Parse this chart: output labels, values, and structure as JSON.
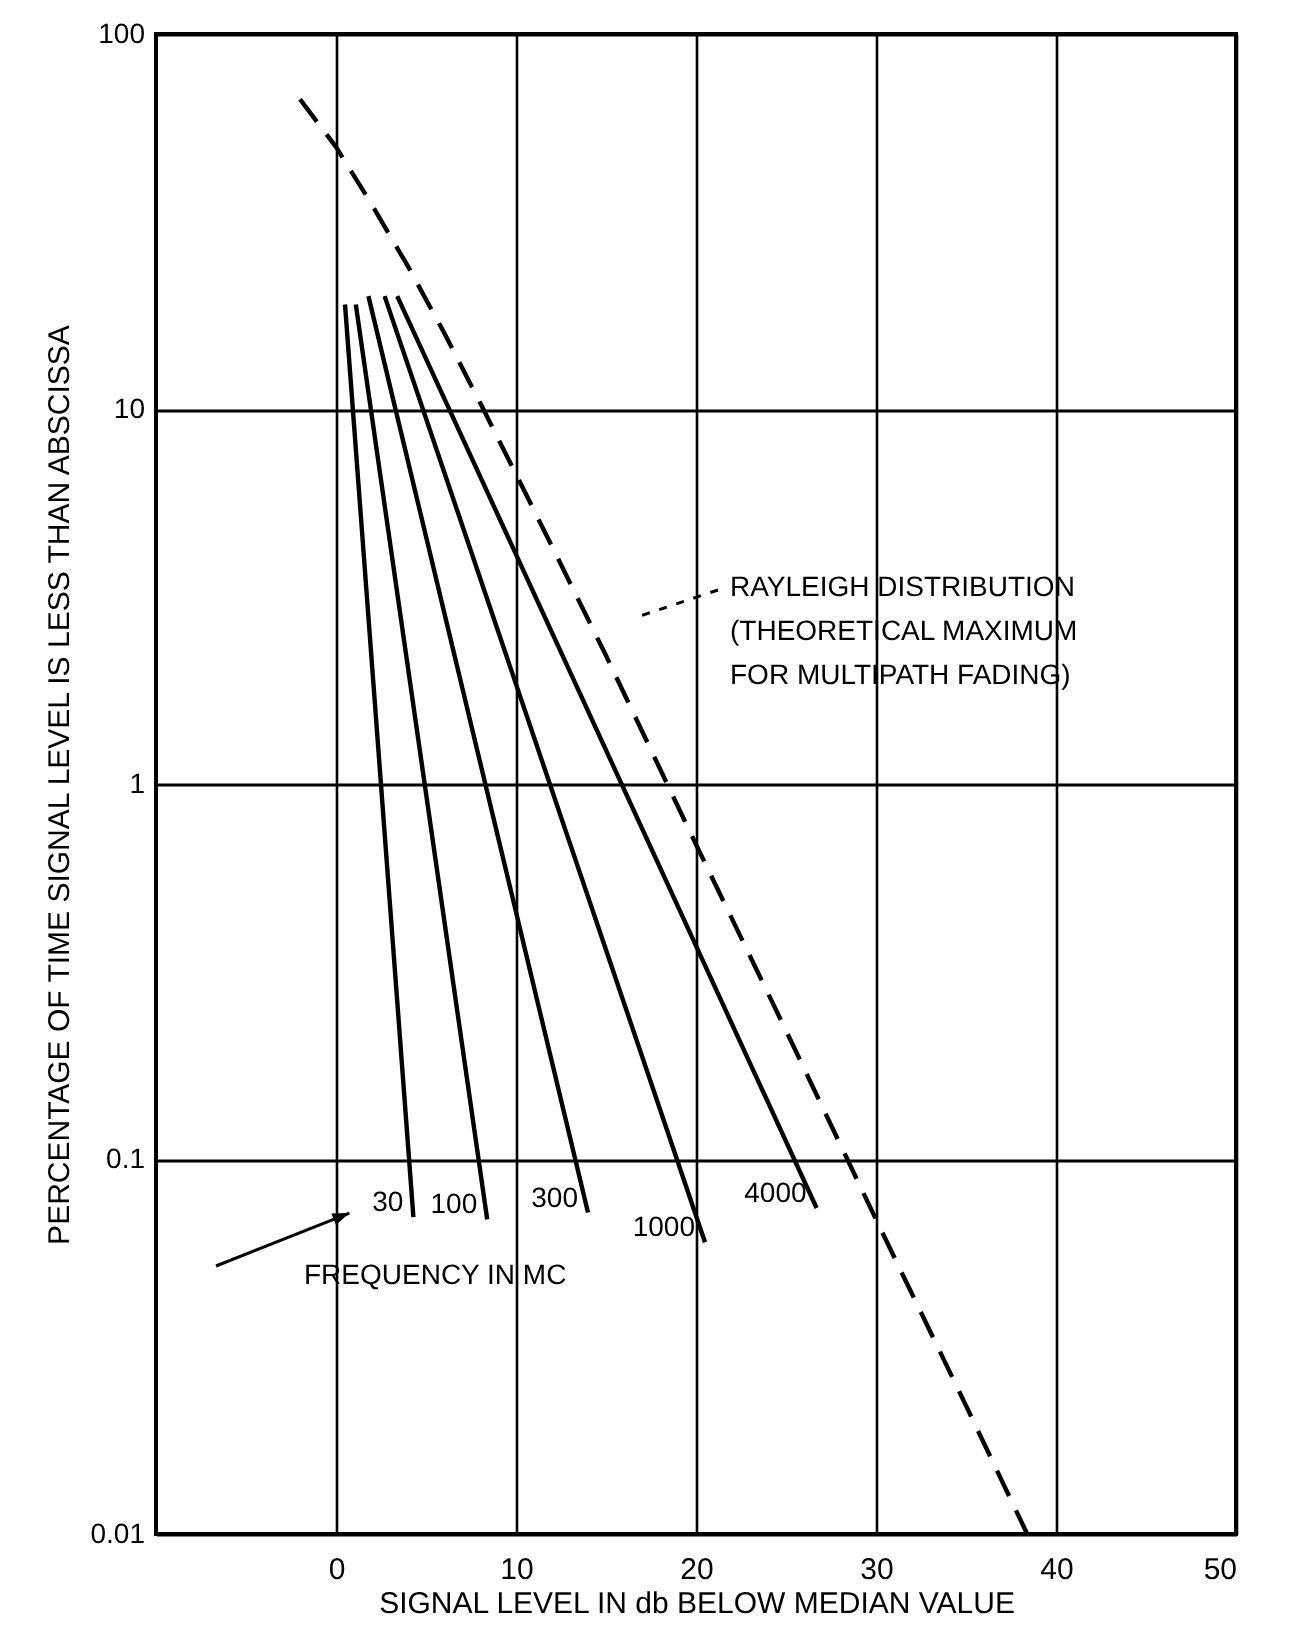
{
  "chart_data": {
    "type": "line",
    "xlabel": "SIGNAL LEVEL IN db BELOW MEDIAN VALUE",
    "ylabel": "PERCENTAGE OF TIME SIGNAL LEVEL IS LESS THAN ABSCISSA",
    "xlim": [
      -10,
      50
    ],
    "xticks": [
      0,
      10,
      20,
      30,
      40,
      50
    ],
    "ylim": [
      0.01,
      100
    ],
    "yticks": [
      0.01,
      0.1,
      1,
      10,
      100
    ],
    "log": "y",
    "grid": true,
    "marker": "none",
    "series": [
      {
        "color": "#000000",
        "line_style": "dashed",
        "x": [
          -2,
          0,
          2,
          4,
          6,
          8,
          10,
          12,
          15,
          20,
          25,
          30,
          35,
          38.4
        ],
        "values": [
          67,
          50,
          35,
          24,
          16,
          10.4,
          6.7,
          4.3,
          2.2,
          0.69,
          0.22,
          0.069,
          0.022,
          0.01
        ]
      },
      {
        "name": "30",
        "color": "#000000",
        "line_style": "solid",
        "x": [
          0.5,
          4.3
        ],
        "values": [
          19,
          0.07
        ]
      },
      {
        "name": "100",
        "color": "#000000",
        "line_style": "solid",
        "x": [
          1.1,
          8.4
        ],
        "values": [
          19,
          0.069
        ]
      },
      {
        "name": "300",
        "color": "#000000",
        "line_style": "solid",
        "x": [
          1.8,
          14.0
        ],
        "values": [
          20,
          0.072
        ]
      },
      {
        "name": "1000",
        "color": "#000000",
        "line_style": "solid",
        "x": [
          2.7,
          20.5
        ],
        "values": [
          20,
          0.06
        ]
      },
      {
        "name": "4000",
        "color": "#000000",
        "line_style": "solid",
        "x": [
          3.4,
          26.7
        ],
        "values": [
          20,
          0.074
        ]
      }
    ],
    "annotations": [
      "FREQUENCY IN MC",
      "RAYLEIGH DISTRIBUTION\n(THEORETICAL MAXIMUM\nFOR MULTIPATH FADING)"
    ]
  }
}
